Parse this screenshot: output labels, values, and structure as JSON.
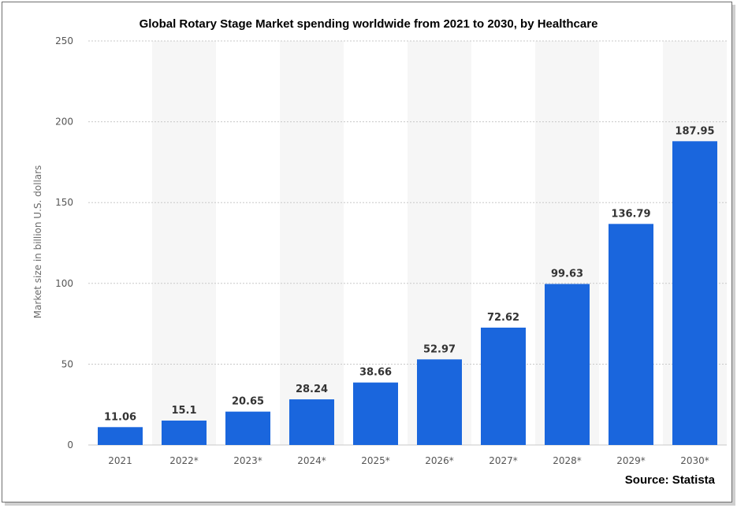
{
  "chart_data": {
    "type": "bar",
    "title": "Global Rotary Stage Market spending worldwide from 2021 to 2030, by Healthcare",
    "source": "Source: Statista",
    "ylabel": "Market size in billion U.S. dollars",
    "xlabel": "",
    "ylim": [
      0,
      250
    ],
    "yticks": [
      "0",
      "50",
      "100",
      "150",
      "200",
      "250"
    ],
    "categories": [
      "2021",
      "2022*",
      "2023*",
      "2024*",
      "2025*",
      "2026*",
      "2027*",
      "2028*",
      "2029*",
      "2030*"
    ],
    "values": [
      11.06,
      15.1,
      20.65,
      28.24,
      38.66,
      52.97,
      72.62,
      99.63,
      136.79,
      187.95
    ],
    "value_labels": [
      "11.06",
      "15.1",
      "20.65",
      "28.24",
      "38.66",
      "52.97",
      "72.62",
      "99.63",
      "136.79",
      "187.95"
    ],
    "bar_color": "#1a66dd",
    "grid": true,
    "legend": "none"
  }
}
